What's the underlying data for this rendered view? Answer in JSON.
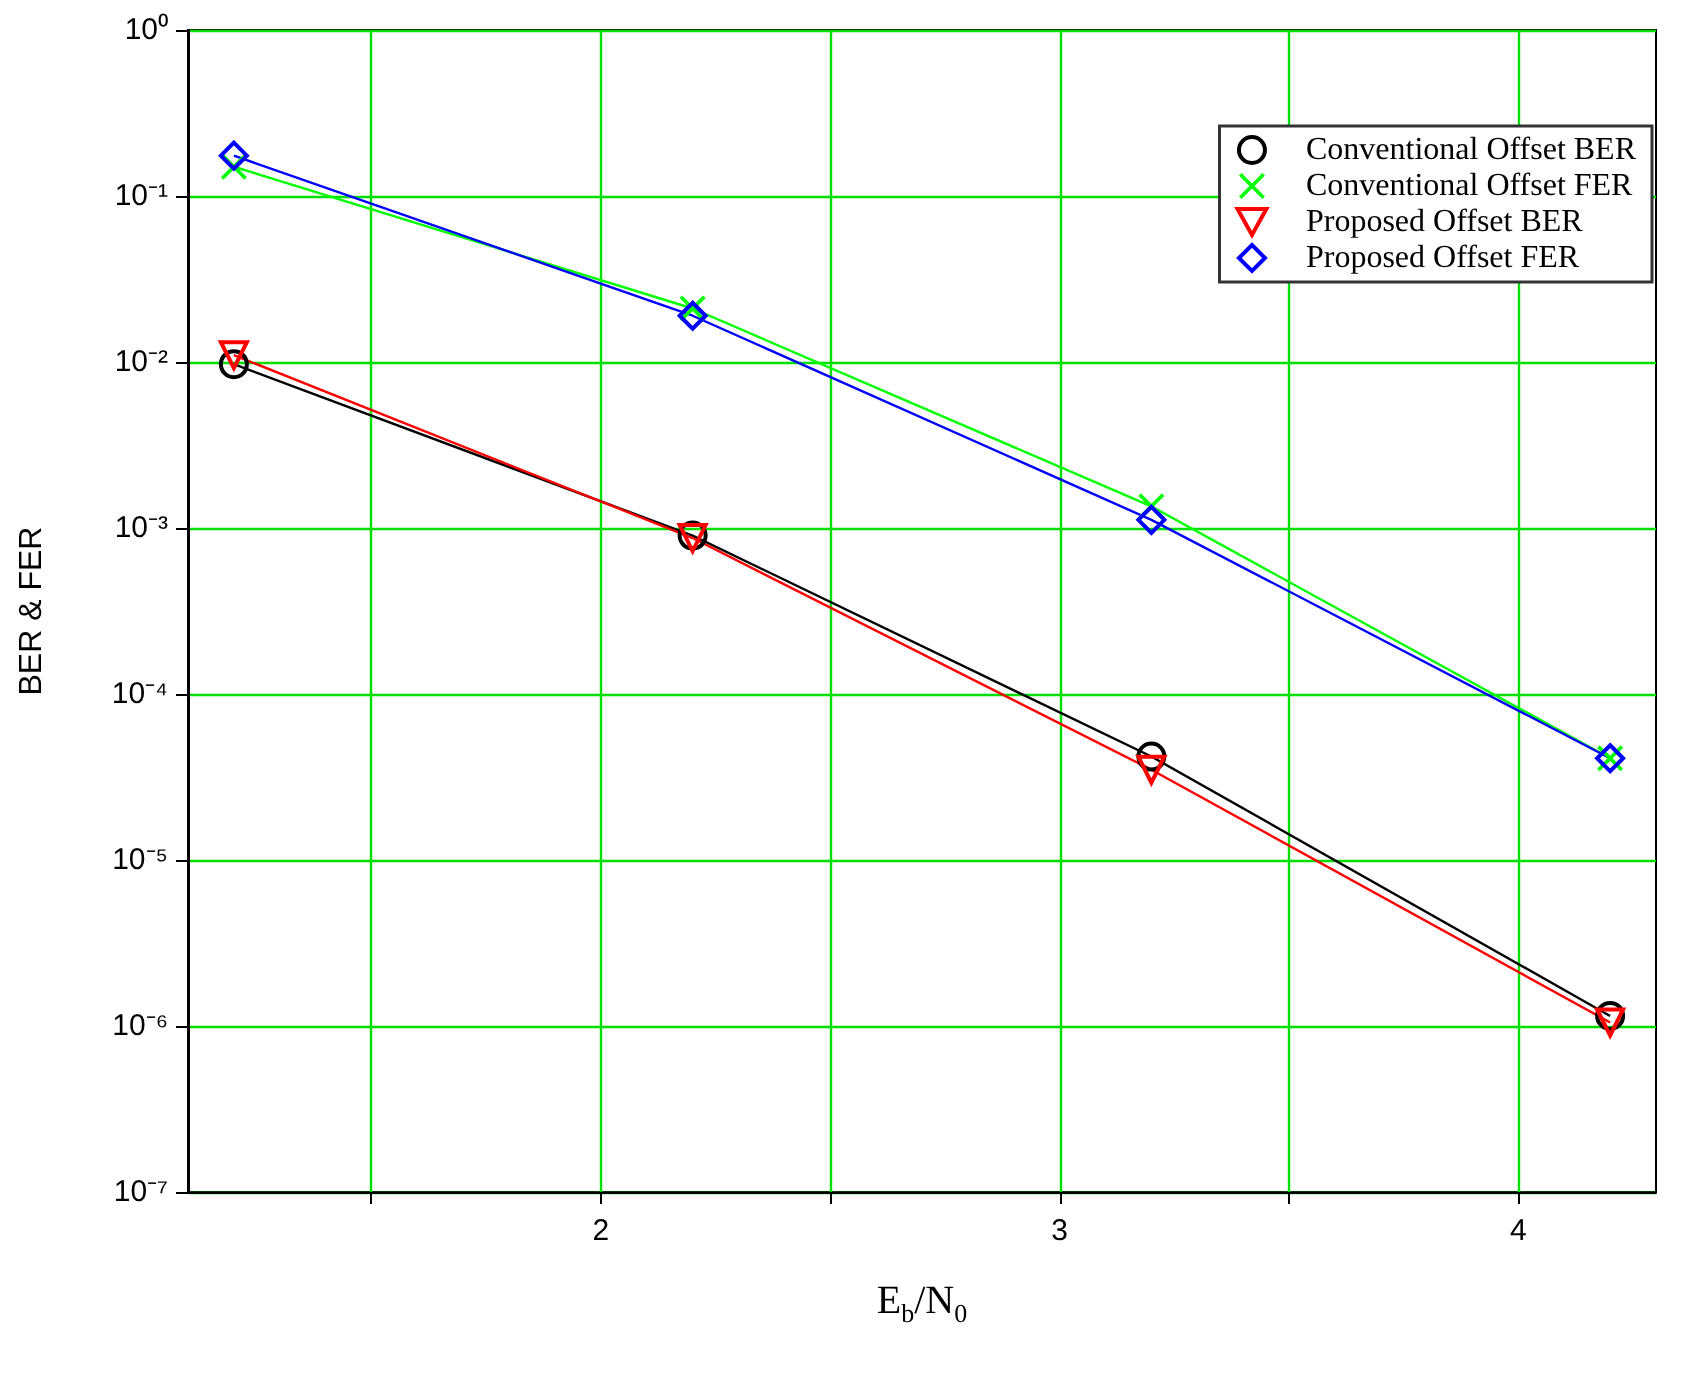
{
  "chart_data": {
    "type": "line",
    "xlabel": "E$_{b}$/N$_{0}$",
    "ylabel": "BER & FER",
    "log": "y",
    "grid": true,
    "legend": "top right",
    "xlim": [
      1.1,
      4.3
    ],
    "xticks": [
      {
        "value": 1.5,
        "label": null
      },
      2,
      {
        "value": 2.5,
        "label": null
      },
      3,
      {
        "value": 3.5,
        "label": null
      },
      4
    ],
    "ylim": [
      1e-07,
      1
    ],
    "yticks": [
      {
        "value": 1e-07,
        "label": "10⁻⁷"
      },
      {
        "value": 1e-06,
        "label": "10⁻⁶"
      },
      {
        "value": 1e-05,
        "label": "10⁻⁵"
      },
      {
        "value": 0.0001,
        "label": "10⁻⁴"
      },
      {
        "value": 0.001,
        "label": "10⁻³"
      },
      {
        "value": 0.01,
        "label": "10⁻²"
      },
      {
        "value": 0.1,
        "label": "10⁻¹"
      },
      {
        "value": 1,
        "label": "10⁰"
      }
    ],
    "x": [
      1.2,
      2.2,
      3.2,
      4.2
    ],
    "series": [
      {
        "name": "Conventional Offset BER",
        "color": "#000000",
        "marker": "circle",
        "values": [
          0.0097,
          0.0009,
          4.2e-05,
          1.15e-06
        ]
      },
      {
        "name": "Conventional Offset FER",
        "color": "#00ff00",
        "marker": "cross",
        "values": [
          0.15,
          0.021,
          0.00135,
          4.1e-05
        ]
      },
      {
        "name": "Proposed Offset BER",
        "color": "#ff0000",
        "marker": "triangle",
        "values": [
          0.011,
          0.00087,
          3.5e-05,
          1.05e-06
        ]
      },
      {
        "name": "Proposed Offset FER",
        "color": "#0000ff",
        "marker": "diamond",
        "values": [
          0.175,
          0.019,
          0.00112,
          4.1e-05
        ]
      }
    ]
  }
}
